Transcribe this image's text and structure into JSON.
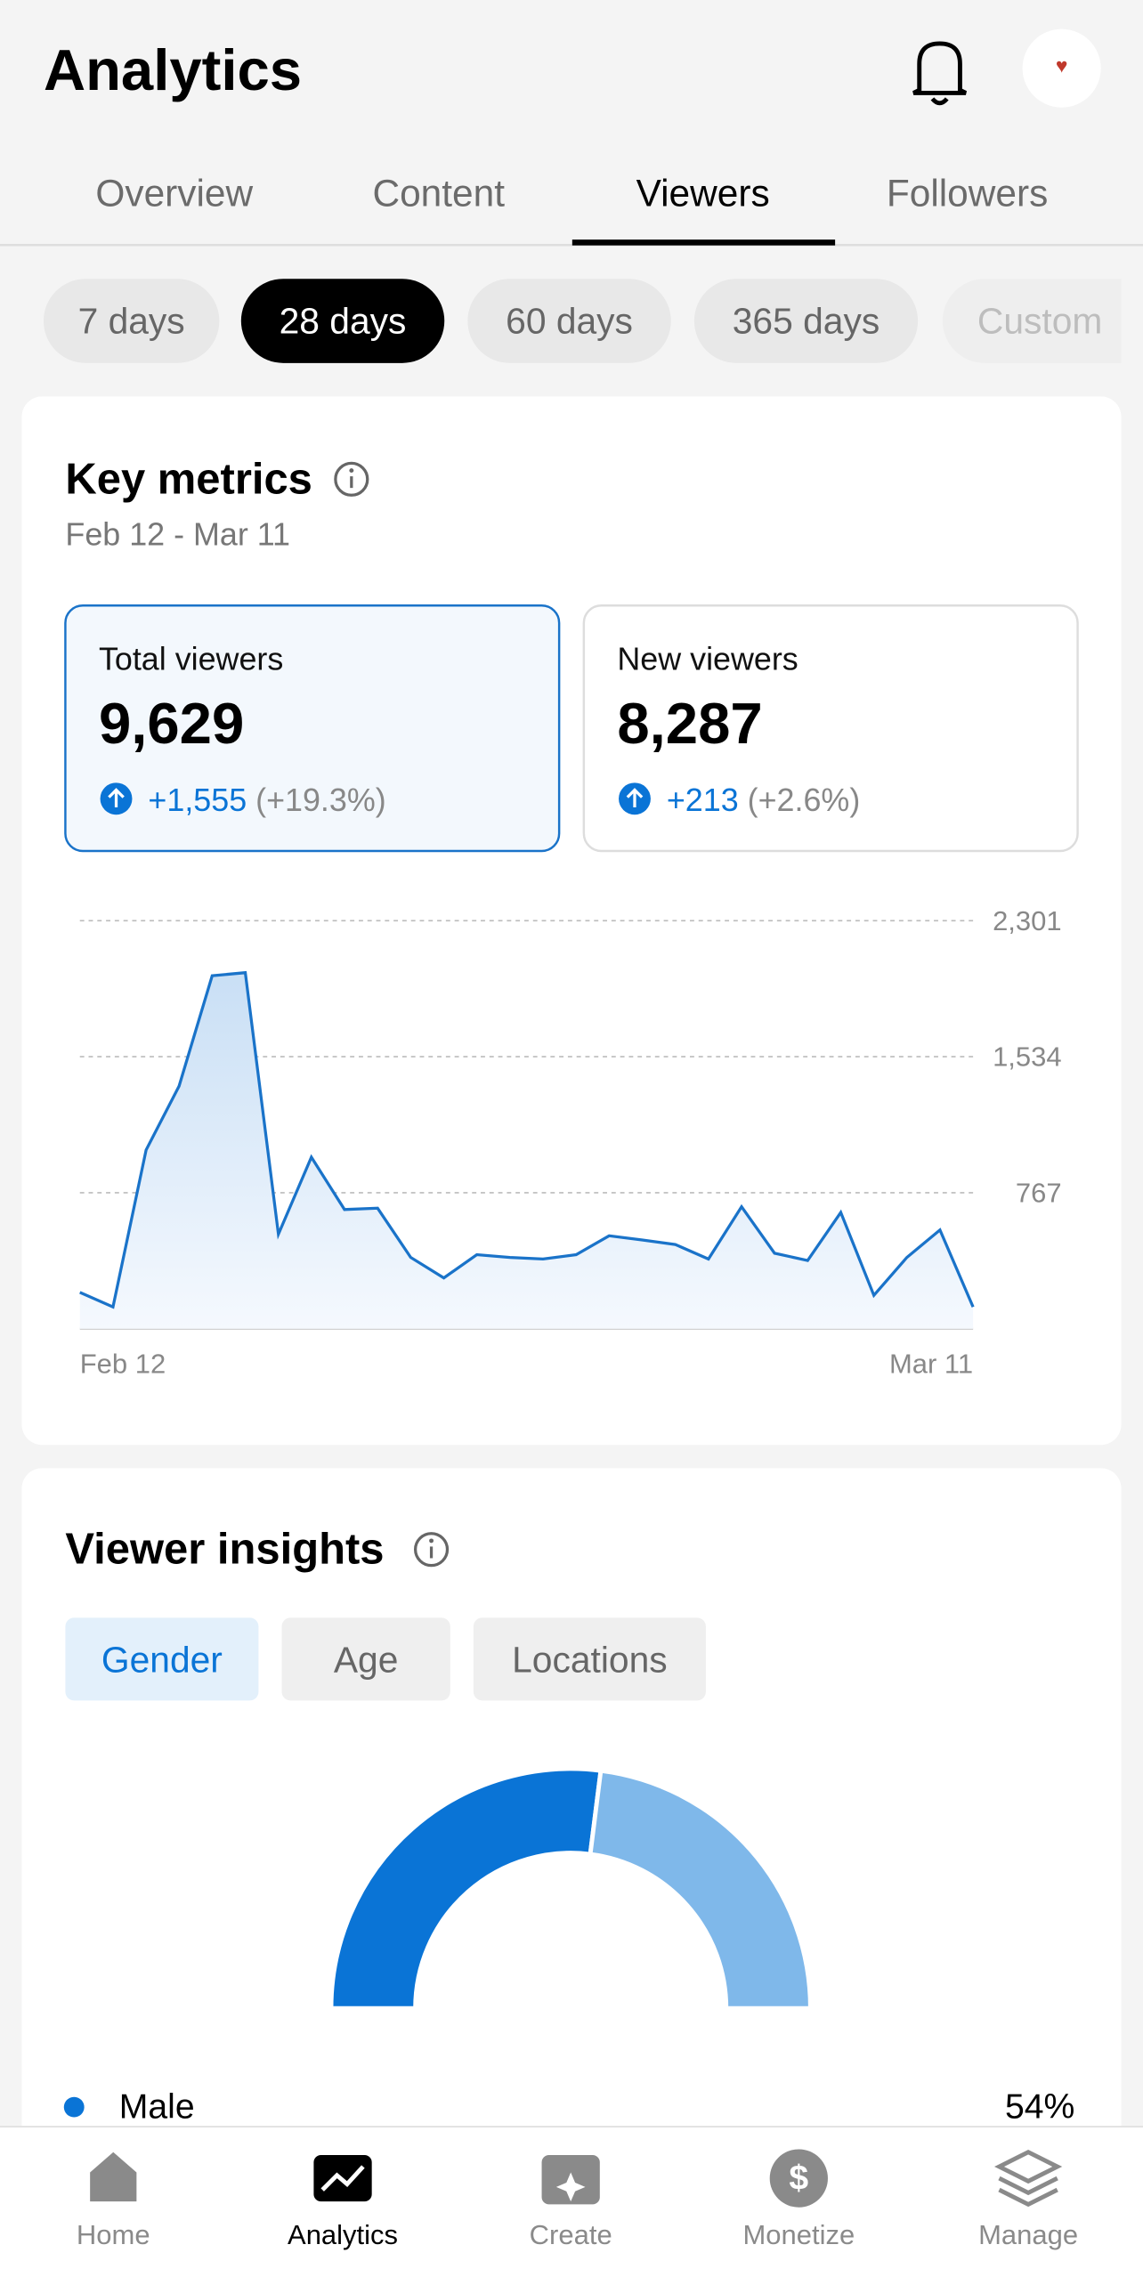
{
  "header": {
    "title": "Analytics"
  },
  "tabs": [
    "Overview",
    "Content",
    "Viewers",
    "Followers"
  ],
  "ranges": [
    "7 days",
    "28 days",
    "60 days",
    "365 days",
    "Custom"
  ],
  "key_metrics": {
    "title": "Key metrics",
    "date_range": "Feb 12 - Mar 11",
    "cards": [
      {
        "label": "Total viewers",
        "value": "9,629",
        "change": "+1,555",
        "percent": "(+19.3%)"
      },
      {
        "label": "New viewers",
        "value": "8,287",
        "change": "+213",
        "percent": "(+2.6%)"
      }
    ]
  },
  "insights": {
    "title": "Viewer insights",
    "tabs": [
      "Gender",
      "Age",
      "Locations"
    ]
  },
  "nav": [
    "Home",
    "Analytics",
    "Create",
    "Monetize",
    "Manage"
  ],
  "chart_data": [
    {
      "type": "line",
      "categories": [
        "Feb 12",
        null,
        null,
        null,
        null,
        null,
        null,
        null,
        null,
        null,
        null,
        null,
        null,
        null,
        null,
        null,
        null,
        null,
        null,
        null,
        null,
        null,
        null,
        null,
        null,
        null,
        null,
        "Mar 11"
      ],
      "values": [
        205,
        123,
        1008,
        1368,
        1991,
        2008,
        533,
        967,
        672,
        680,
        402,
        287,
        418,
        402,
        393,
        418,
        524,
        500,
        475,
        393,
        688,
        426,
        385,
        656,
        188,
        402,
        557,
        123
      ],
      "color": "#1a73c9",
      "ylim": [
        0,
        2301
      ],
      "yticks": [
        {
          "value": 767,
          "label": "767"
        },
        {
          "value": 1534,
          "label": "1,534"
        },
        {
          "value": 2301,
          "label": "2,301"
        }
      ],
      "grid": true
    },
    {
      "type": "pie",
      "categories": [
        "Male",
        null
      ],
      "values": [
        54,
        46
      ],
      "value_labels": [
        "54%",
        null
      ],
      "colors": [
        "#0a74d6",
        "#7fb8ea"
      ]
    }
  ]
}
